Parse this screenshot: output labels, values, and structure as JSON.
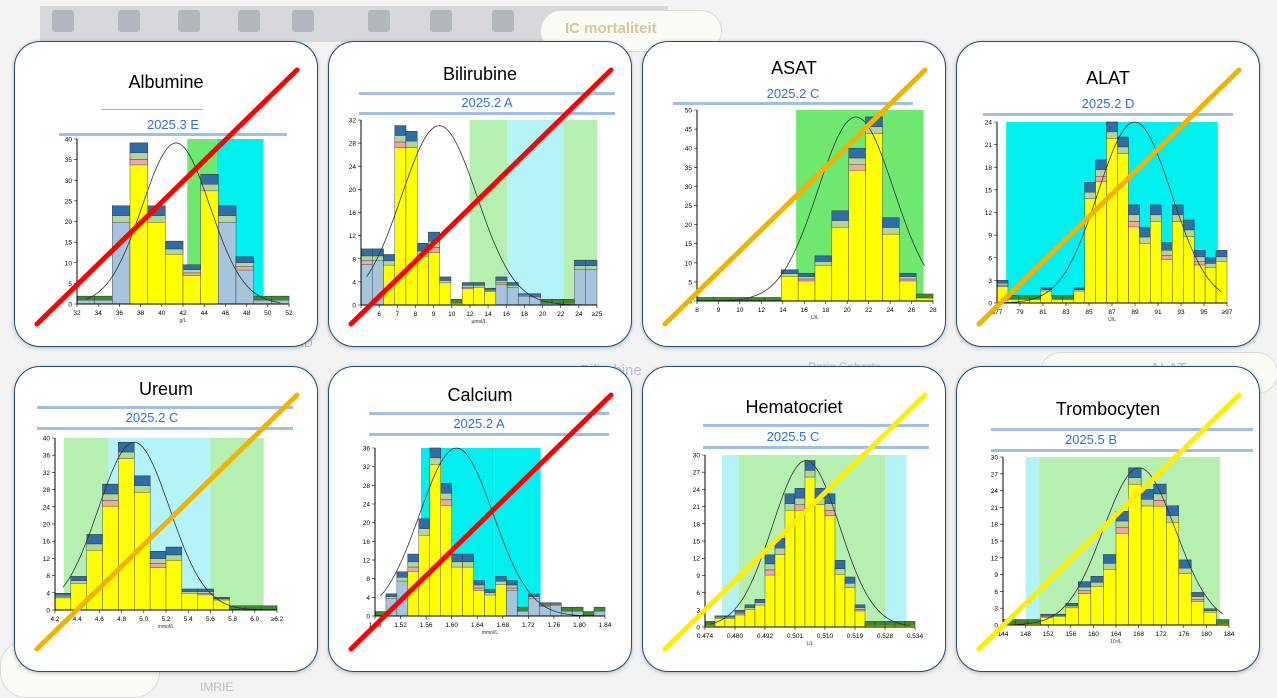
{
  "background": {
    "tab_label": "IC mortaliteit",
    "items": [
      "Cockroft-Gault/MDRD",
      "Bilirubine",
      "Paris Cohorts",
      "ALAT",
      "IMRIE"
    ]
  },
  "colors": {
    "yellow": "#ffff00",
    "blue": "#2e6ea6",
    "lightblue": "#a6c4de",
    "darkgreen": "#3c8a2e",
    "lightgreen": "#b3d59a",
    "pink": "#f4a3a8",
    "red": "#e53935",
    "cross_red": "#ff0000",
    "cross_orange": "#f2b200",
    "cross_yellow": "#ffee00",
    "band_green": "#b5f0b0",
    "band_cyan": "#b4f3f7",
    "band_strong_green": "#6ee86e",
    "band_strong_cyan": "#00f0f0"
  },
  "chart_data": [
    {
      "id": "albumine",
      "type": "bar",
      "title": "Albumine",
      "code": "2025.3 E",
      "unit": "g/L",
      "xticks": [
        "32",
        "34",
        "36",
        "38",
        "40",
        "42",
        "44",
        "46",
        "48",
        "50",
        "52"
      ],
      "yticks": [
        "0",
        "5",
        "10",
        "15",
        "20",
        "25",
        "30",
        "35",
        "40"
      ],
      "ylim": [
        0,
        42
      ],
      "cross": "red",
      "categories": [
        "36.5",
        "37.5",
        "38.5",
        "39.5",
        "40.5",
        "41.5",
        "42.5",
        "43.5",
        "44.5",
        "45.5",
        "46.5",
        "47.5"
      ],
      "values": [
        2,
        2,
        25,
        41,
        25,
        16,
        10,
        33,
        25,
        12,
        2,
        2
      ]
    },
    {
      "id": "bilirubine",
      "type": "bar",
      "title": "Bilirubine",
      "code": "2025.2 A",
      "unit": "µmol/L",
      "xticks": [
        "5",
        "6",
        "7",
        "8",
        "9",
        "10",
        "12",
        "14",
        "16",
        "18",
        "20",
        "22",
        "24",
        "≥25"
      ],
      "yticks": [
        "0",
        "4",
        "8",
        "12",
        "16",
        "20",
        "24",
        "28",
        "32"
      ],
      "ylim": [
        0,
        33
      ],
      "cross": "red",
      "categories": [
        "5",
        "6",
        "7",
        "8",
        "9",
        "10",
        "11",
        "12",
        "13",
        "14",
        "15",
        "16",
        "17",
        "18",
        "19",
        "20",
        "21",
        "22",
        "23",
        "24",
        "≥25"
      ],
      "values": [
        10,
        10,
        9,
        32,
        31,
        11,
        13,
        5,
        1,
        4,
        4,
        3,
        5,
        4,
        2,
        2,
        1,
        1,
        1,
        8,
        8
      ]
    },
    {
      "id": "asat",
      "type": "bar",
      "title": "ASAT",
      "code": "2025.2 C",
      "unit": "U/L",
      "xticks": [
        "8",
        "9",
        "10",
        "12",
        "14",
        "16",
        "18",
        "20",
        "22",
        "24",
        "26",
        "28"
      ],
      "yticks": [
        "0",
        "5",
        "10",
        "15",
        "20",
        "25",
        "30",
        "35",
        "40",
        "45",
        "50"
      ],
      "ylim": [
        0,
        55
      ],
      "cross": "orange",
      "categories": [
        "10",
        "11",
        "12",
        "13",
        "14",
        "15",
        "16",
        "17",
        "18",
        "19",
        "20",
        "21",
        "22",
        "23"
      ],
      "values": [
        1,
        1,
        1,
        1,
        1,
        9,
        8,
        13,
        26,
        44,
        53,
        24,
        8,
        2
      ]
    },
    {
      "id": "alat",
      "type": "bar",
      "title": "ALAT",
      "code": "2025.2 D",
      "unit": "U/L",
      "xticks": [
        "≤77",
        "79",
        "81",
        "83",
        "85",
        "87",
        "89",
        "91",
        "93",
        "95",
        "≥97"
      ],
      "yticks": [
        "0",
        "3",
        "6",
        "9",
        "12",
        "15",
        "18",
        "21",
        "24"
      ],
      "ylim": [
        0,
        24
      ],
      "cross": "orange",
      "categories": [
        "≤77",
        "78",
        "79",
        "80",
        "81",
        "82",
        "83",
        "84",
        "85",
        "86",
        "87",
        "88",
        "89",
        "90",
        "91",
        "92",
        "93",
        "94",
        "95",
        "96",
        "≥97"
      ],
      "values": [
        3,
        1,
        1,
        1,
        2,
        1,
        1,
        2,
        16,
        19,
        24,
        22,
        13,
        10,
        13,
        8,
        13,
        11,
        7,
        6,
        7
      ]
    },
    {
      "id": "ureum",
      "type": "bar",
      "title": "Ureum",
      "code": "2025.2 C",
      "unit": "mmol/L",
      "xticks": [
        "4.2",
        "4.4",
        "4.6",
        "4.8",
        "5.0",
        "5.2",
        "5.4",
        "5.6",
        "5.8",
        "6.0",
        "≥6.2"
      ],
      "yticks": [
        "0",
        "4",
        "8",
        "12",
        "16",
        "20",
        "24",
        "28",
        "32",
        "36",
        "40"
      ],
      "ylim": [
        0,
        41
      ],
      "cross": "orange",
      "categories": [
        "4.7",
        "4.8",
        "4.9",
        "5.0",
        "5.1",
        "5.2",
        "5.3",
        "5.4",
        "5.5",
        "5.6",
        "5.7",
        "5.8",
        "5.9",
        "6.0"
      ],
      "values": [
        4,
        8,
        18,
        30,
        40,
        32,
        14,
        15,
        5,
        5,
        3,
        1,
        1,
        1
      ]
    },
    {
      "id": "calcium",
      "type": "bar",
      "title": "Calcium",
      "code": "2025.2 A",
      "unit": "mmol/L",
      "xticks": [
        "1.46",
        "1.52",
        "1.56",
        "1.60",
        "1.64",
        "1.68",
        "1.72",
        "1.76",
        "1.80",
        "1.84"
      ],
      "yticks": [
        "0",
        "4",
        "8",
        "12",
        "16",
        "20",
        "24",
        "28",
        "32",
        "36"
      ],
      "ylim": [
        0,
        38
      ],
      "cross": "red",
      "categories": [
        "1.46",
        "1.58",
        "1.59",
        "1.60",
        "1.61",
        "1.62",
        "1.63",
        "1.64",
        "1.65",
        "1.66",
        "1.67",
        "1.68",
        "1.69",
        "1.70",
        "1.72",
        "1.74",
        "1.76",
        "1.78",
        "1.80",
        "1.82",
        "1.84"
      ],
      "values": [
        1,
        5,
        10,
        14,
        22,
        38,
        30,
        14,
        14,
        8,
        6,
        9,
        8,
        2,
        5,
        3,
        3,
        2,
        2,
        1,
        2
      ]
    },
    {
      "id": "hematocriet",
      "type": "bar",
      "title": "Hematocriet",
      "code": "2025.5 C",
      "unit": "L/L",
      "xticks": [
        "0.474",
        "0.480",
        "0.492",
        "0.501",
        "0.510",
        "0.519",
        "0.528",
        "0.534"
      ],
      "yticks": [
        "0",
        "3",
        "6",
        "9",
        "12",
        "15",
        "18",
        "21",
        "24",
        "27",
        "30"
      ],
      "ylim": [
        0,
        31
      ],
      "cross": "yellow",
      "categories": [
        "0.474",
        "0.477",
        "0.480",
        "0.483",
        "0.486",
        "0.489",
        "0.492",
        "0.495",
        "0.498",
        "0.501",
        "0.504",
        "0.507",
        "0.510",
        "0.513",
        "0.516",
        "0.519",
        "0.522",
        "0.525",
        "0.528",
        "0.531",
        "0.534"
      ],
      "values": [
        1,
        2,
        2,
        3,
        4,
        5,
        13,
        16,
        24,
        25,
        30,
        25,
        24,
        12,
        9,
        4,
        1,
        1,
        1,
        1,
        1
      ]
    },
    {
      "id": "trombocyten",
      "type": "bar",
      "title": "Trombocyten",
      "code": "2025.5 B",
      "unit": "10⁹/L",
      "xticks": [
        "144",
        "148",
        "152",
        "156",
        "160",
        "164",
        "168",
        "172",
        "176",
        "180",
        "184"
      ],
      "yticks": [
        "0",
        "3",
        "6",
        "9",
        "12",
        "15",
        "18",
        "21",
        "24",
        "27",
        "30"
      ],
      "ylim": [
        0,
        31
      ],
      "cross": "yellow",
      "categories": [
        "146",
        "148",
        "150",
        "152",
        "154",
        "156",
        "158",
        "160",
        "162",
        "164",
        "166",
        "168",
        "170",
        "172",
        "174",
        "176",
        "178",
        "180"
      ],
      "values": [
        1,
        1,
        1,
        2,
        2,
        4,
        8,
        9,
        13,
        21,
        29,
        25,
        26,
        22,
        12,
        6,
        3,
        1
      ]
    }
  ]
}
